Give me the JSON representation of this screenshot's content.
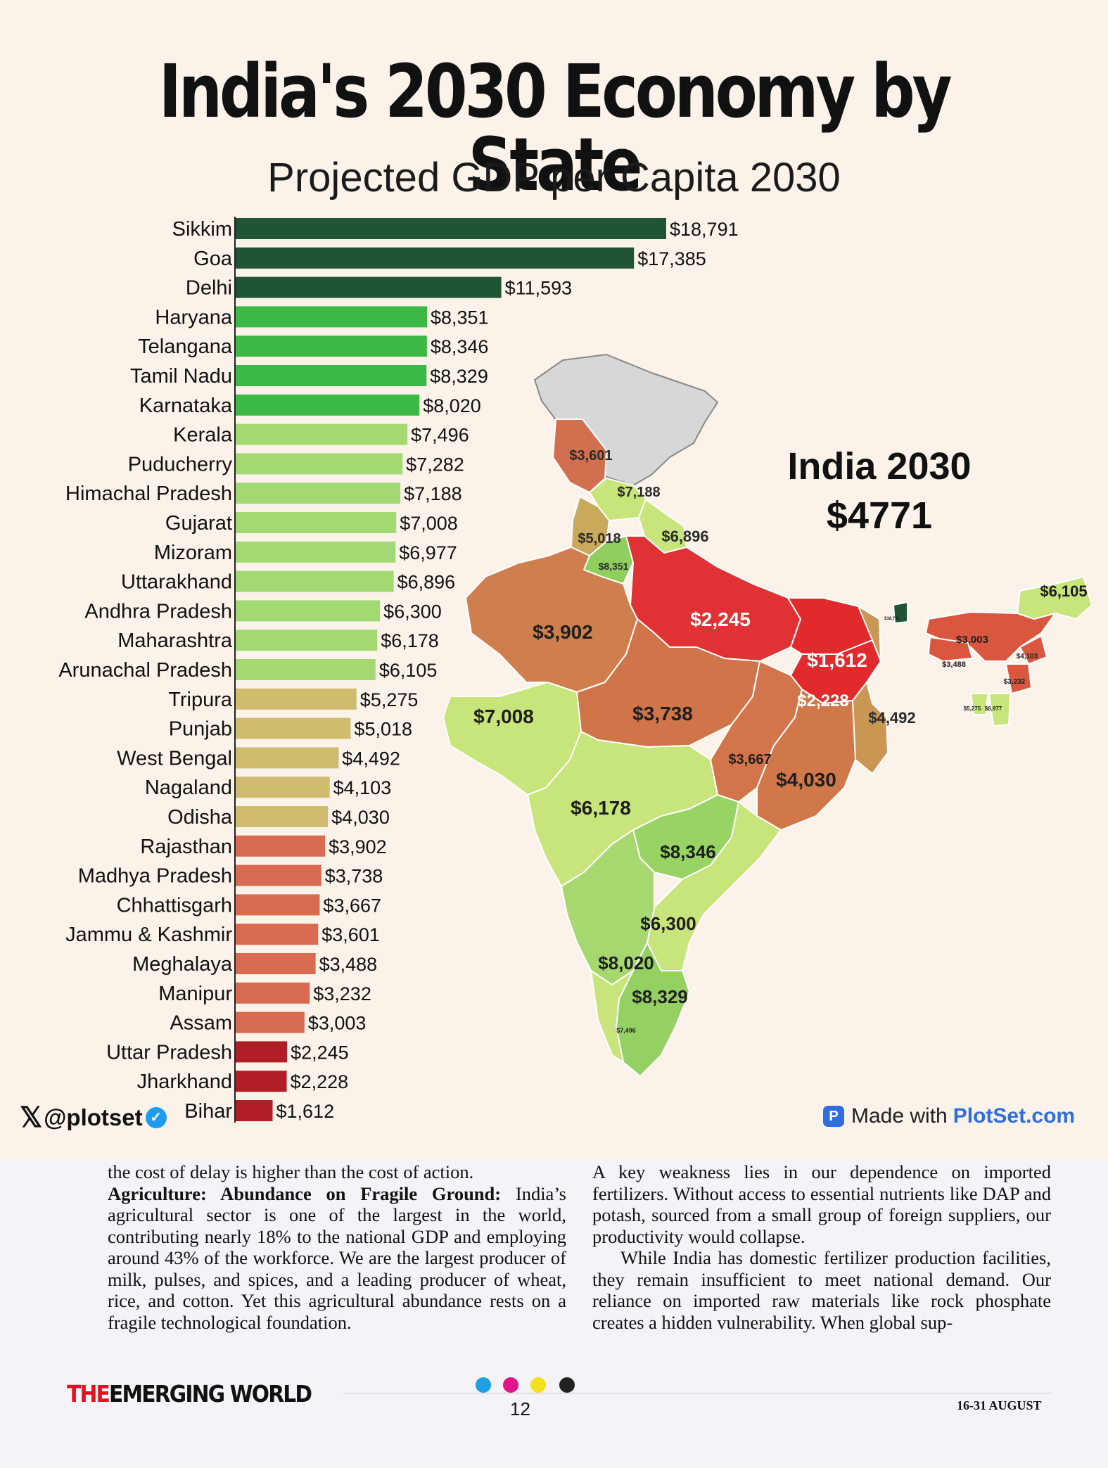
{
  "title": "India's 2030 Economy by State",
  "subtitle": "Projected GDP per Capita 2030",
  "colors": {
    "tier_dark_green": "#1f5535",
    "tier_green": "#3cb844",
    "tier_light_green": "#a2d973",
    "tier_khaki": "#d0bc6f",
    "tier_salmon": "#d86b50",
    "tier_red": "#b01d27",
    "background": "#fbf3ea"
  },
  "chart_data": {
    "type": "bar",
    "orientation": "horizontal",
    "categories": [
      "Sikkim",
      "Goa",
      "Delhi",
      "Haryana",
      "Telangana",
      "Tamil Nadu",
      "Karnataka",
      "Kerala",
      "Puducherry",
      "Himachal Pradesh",
      "Gujarat",
      "Mizoram",
      "Uttarakhand",
      "Andhra Pradesh",
      "Maharashtra",
      "Arunachal Pradesh",
      "Tripura",
      "Punjab",
      "West Bengal",
      "Nagaland",
      "Odisha",
      "Rajasthan",
      "Madhya Pradesh",
      "Chhattisgarh",
      "Jammu & Kashmir",
      "Meghalaya",
      "Manipur",
      "Assam",
      "Uttar Pradesh",
      "Jharkhand",
      "Bihar"
    ],
    "values": [
      18791,
      17385,
      11593,
      8351,
      8346,
      8329,
      8020,
      7496,
      7282,
      7188,
      7008,
      6977,
      6896,
      6300,
      6178,
      6105,
      5275,
      5018,
      4492,
      4103,
      4030,
      3902,
      3738,
      3667,
      3601,
      3488,
      3232,
      3003,
      2245,
      2228,
      1612
    ],
    "labels": [
      "$18,791",
      "$17,385",
      "$11,593",
      "$8,351",
      "$8,346",
      "$8,329",
      "$8,020",
      "$7,496",
      "$7,282",
      "$7,188",
      "$7,008",
      "$6,977",
      "$6,896",
      "$6,300",
      "$6,178",
      "$6,105",
      "$5,275",
      "$5,018",
      "$4,492",
      "$4,103",
      "$4,030",
      "$3,902",
      "$3,738",
      "$3,667",
      "$3,601",
      "$3,488",
      "$3,232",
      "$3,003",
      "$2,245",
      "$2,228",
      "$1,612"
    ],
    "tiers": [
      "tier_dark_green",
      "tier_dark_green",
      "tier_dark_green",
      "tier_green",
      "tier_green",
      "tier_green",
      "tier_green",
      "tier_light_green",
      "tier_light_green",
      "tier_light_green",
      "tier_light_green",
      "tier_light_green",
      "tier_light_green",
      "tier_light_green",
      "tier_light_green",
      "tier_light_green",
      "tier_khaki",
      "tier_khaki",
      "tier_khaki",
      "tier_khaki",
      "tier_khaki",
      "tier_salmon",
      "tier_salmon",
      "tier_salmon",
      "tier_salmon",
      "tier_salmon",
      "tier_salmon",
      "tier_salmon",
      "tier_red",
      "tier_red",
      "tier_red"
    ],
    "grid": false
  },
  "map": {
    "national_title": "India 2030",
    "national_value": "$4771",
    "region_labels": [
      {
        "state": "Jammu & Kashmir",
        "text": "$3,601"
      },
      {
        "state": "Himachal Pradesh",
        "text": "$7,188"
      },
      {
        "state": "Punjab",
        "text": "$5,018"
      },
      {
        "state": "Uttarakhand",
        "text": "$6,896"
      },
      {
        "state": "Haryana",
        "text": "$8,351"
      },
      {
        "state": "Rajasthan",
        "text": "$3,902"
      },
      {
        "state": "Uttar Pradesh",
        "text": "$2,245"
      },
      {
        "state": "Bihar",
        "text": "$1,612"
      },
      {
        "state": "Jharkhand",
        "text": "$2,228"
      },
      {
        "state": "West Bengal",
        "text": "$4,492"
      },
      {
        "state": "Gujarat",
        "text": "$7,008"
      },
      {
        "state": "Madhya Pradesh",
        "text": "$3,738"
      },
      {
        "state": "Chhattisgarh",
        "text": "$3,667"
      },
      {
        "state": "Odisha",
        "text": "$4,030"
      },
      {
        "state": "Maharashtra",
        "text": "$6,178"
      },
      {
        "state": "Telangana",
        "text": "$8,346"
      },
      {
        "state": "Andhra Pradesh",
        "text": "$6,300"
      },
      {
        "state": "Karnataka",
        "text": "$8,020"
      },
      {
        "state": "Tamil Nadu",
        "text": "$8,329"
      },
      {
        "state": "Kerala",
        "text": "$7,496"
      },
      {
        "state": "Arunachal Pradesh",
        "text": "$6,105"
      },
      {
        "state": "Assam",
        "text": "$3,003"
      },
      {
        "state": "Meghalaya",
        "text": "$3,488"
      },
      {
        "state": "Nagaland",
        "text": "$4,103"
      },
      {
        "state": "Manipur",
        "text": "$3,232"
      },
      {
        "state": "Tripura",
        "text": "$5,275"
      },
      {
        "state": "Mizoram",
        "text": "$6,977"
      },
      {
        "state": "Sikkim",
        "text": "$18,791"
      }
    ]
  },
  "footer": {
    "handle": "@plotset",
    "credit_prefix": "Made with",
    "credit_brand": "PlotSet.com"
  },
  "article": {
    "left": {
      "line1": "the cost of delay is higher than the cost of action.",
      "heading": "Agriculture: Abundance on Fragile Ground:",
      "body": "India’s agricultural sector is one of the largest in the world, contributing nearly 18% to the national GDP and employing around 43% of the workforce. We are the largest producer of milk, pulses, and spices, and a leading producer of wheat, rice, and cotton. Yet this agricultural abundance rests on a fragile technological foundation."
    },
    "right": {
      "para1": "A key weakness lies in our dependence on imported fertilizers. Without access to essential nutrients like DAP and potash, sourced from a small group of foreign suppliers, our productivity would collapse.",
      "para2": "While India has domestic fertilizer production facilities, they remain insufficient to meet national demand. Our reliance on imported raw materials like rock phosphate creates a hidden vulnerability. When global sup-"
    }
  },
  "page": {
    "masthead_the": "THE",
    "masthead_rest": "EMERGING WORLD",
    "page_number": "12",
    "issue_date": "16-31 AUGUST",
    "printer_marks": [
      "#1ea1e0",
      "#e0168a",
      "#f5e11a",
      "#222222"
    ]
  }
}
